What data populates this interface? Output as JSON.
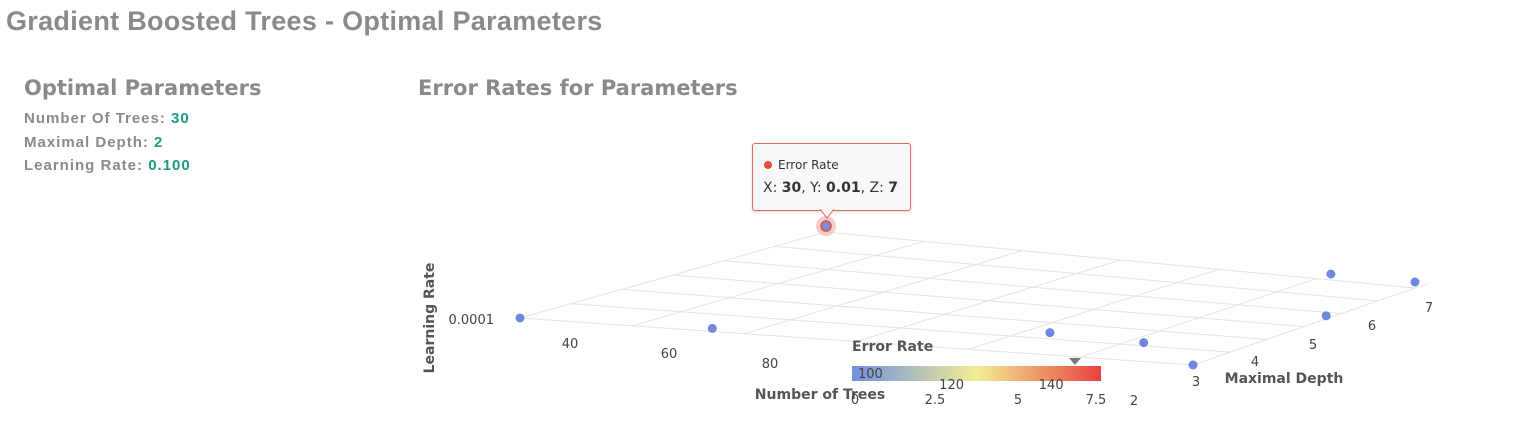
{
  "page_title": "Gradient Boosted Trees - Optimal Parameters",
  "optimal": {
    "title": "Optimal Parameters",
    "rows": [
      {
        "label": "Number Of Trees:",
        "value": "30"
      },
      {
        "label": "Maximal Depth:",
        "value": "2"
      },
      {
        "label": "Learning Rate:",
        "value": "0.100"
      }
    ]
  },
  "chart_data": {
    "type": "scatter",
    "title": "Error Rates for Parameters",
    "xlabel": "Number of Trees",
    "ylabel": "Learning Rate",
    "zlabel": "Maximal Depth",
    "x_ticks": [
      "40",
      "60",
      "80"
    ],
    "y_ticks": [
      "0.0001"
    ],
    "z_ticks": [
      "2",
      "3",
      "4",
      "5",
      "6",
      "7"
    ],
    "series_name": "Error Rate",
    "points": [
      {
        "x": 30,
        "y": 0.01,
        "z": 7
      },
      {
        "x": 30,
        "y": 0.0001,
        "z": 2
      },
      {
        "x": 50,
        "y": 0.001,
        "z": 2
      },
      {
        "x": 90,
        "y": 0.0001,
        "z": 3
      },
      {
        "x": 90,
        "y": 0.01,
        "z": 7
      },
      {
        "x": 100,
        "y": 0.0001,
        "z": 2
      },
      {
        "x": 80,
        "y": 0.001,
        "z": 3
      },
      {
        "x": 100,
        "y": 0.001,
        "z": 5
      },
      {
        "x": 100,
        "y": 0.01,
        "z": 7
      }
    ],
    "highlighted_index": 0,
    "color_axis": {
      "title": "Error Rate",
      "min": 100,
      "max": 150,
      "tick_labels": [
        "100",
        "120",
        "140"
      ],
      "colors": [
        "#6f8fe0",
        "#f2ee94",
        "#e8423e"
      ]
    },
    "extra_tick_labels": [
      "0",
      "2.5",
      "5",
      "7.5"
    ],
    "tooltip": {
      "series": "Error Rate",
      "x_label": "X:",
      "x_value": "30",
      "y_label": "Y:",
      "y_value": "0.01",
      "z_label": "Z:",
      "z_value": "7"
    }
  }
}
